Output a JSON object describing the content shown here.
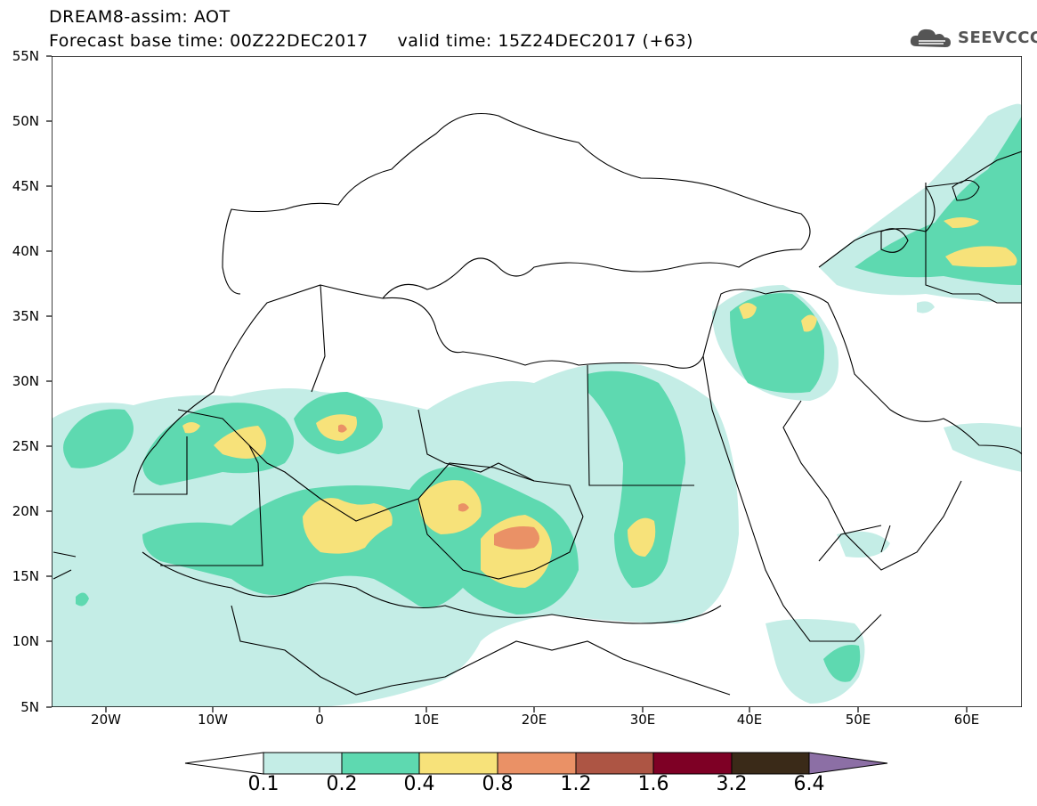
{
  "title": {
    "line1": "DREAM8-assim: AOT",
    "line2": "Forecast base time: 00Z22DEC2017     valid time: 15Z24DEC2017 (+63)"
  },
  "logo": {
    "text": "SEEVCCC",
    "icon": "cloud-logo-icon"
  },
  "axes": {
    "lat_labels": [
      "55N",
      "50N",
      "45N",
      "40N",
      "35N",
      "30N",
      "25N",
      "20N",
      "15N",
      "10N",
      "5N"
    ],
    "lon_labels": [
      "20W",
      "10W",
      "0",
      "10E",
      "20E",
      "30E",
      "40E",
      "50E",
      "60E"
    ],
    "lon_range": [
      -25,
      65
    ],
    "lat_range": [
      5,
      55
    ]
  },
  "colorbar": {
    "labels": [
      "0.1",
      "0.2",
      "0.4",
      "0.8",
      "1.2",
      "1.6",
      "3.2",
      "6.4"
    ],
    "colors": [
      "#ffffff",
      "#c4ede6",
      "#5ed9b0",
      "#f7e27a",
      "#ea9166",
      "#ad5544",
      "#7e0025",
      "#3a2a18",
      "#8c6fa5"
    ]
  }
}
